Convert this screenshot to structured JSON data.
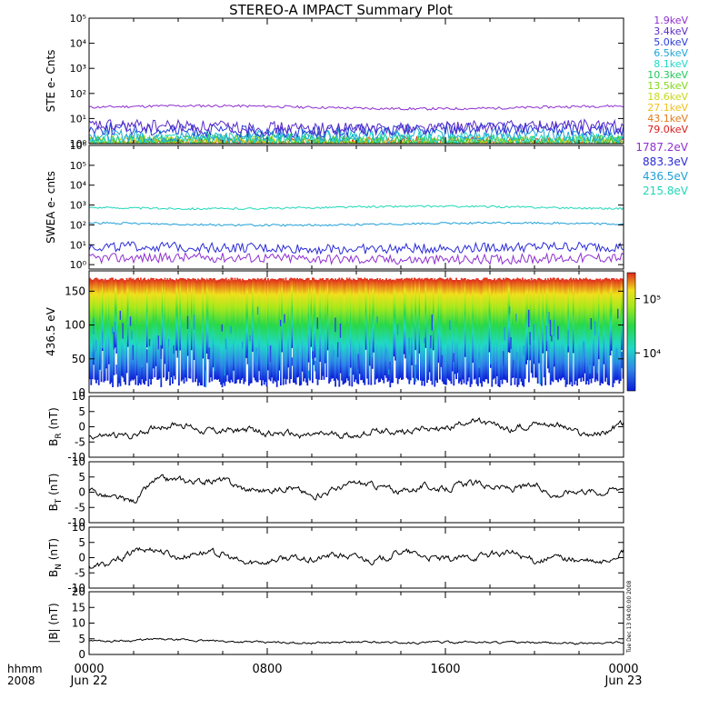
{
  "title": "STEREO-A IMPACT Summary Plot",
  "footer": {
    "left_line1": "hhmm",
    "left_line2": "2008"
  },
  "side_stamp": "Tue Dec 13 04:00:00 2008",
  "x_axis": {
    "ticks": [
      {
        "hours": 0,
        "line1": "0000",
        "line2": "Jun 22"
      },
      {
        "hours": 8,
        "line1": "0800",
        "line2": ""
      },
      {
        "hours": 16,
        "line1": "1600",
        "line2": ""
      },
      {
        "hours": 24,
        "line1": "0000",
        "line2": "Jun 23"
      }
    ],
    "range_hours": [
      0,
      24
    ]
  },
  "colors": {
    "ste": [
      "#8f2fd0",
      "#5a2bc8",
      "#2a3cd8",
      "#1fa6d8",
      "#20d8c8",
      "#22c85a",
      "#80d81c",
      "#c8d81c",
      "#f0c01c",
      "#e07a1c",
      "#d81c1c"
    ],
    "swea": [
      "#8f2fd0",
      "#2a2ad8",
      "#1f9fd8",
      "#20d8b8"
    ]
  },
  "chart_data": [
    {
      "type": "line",
      "ylabel": "STE e- Cnts",
      "yscale": "log",
      "ylim": [
        1,
        100000
      ],
      "yticks": [
        "10⁰",
        "10¹",
        "10²",
        "10³",
        "10⁴",
        "10⁵"
      ],
      "series": [
        {
          "name": "1.9keV",
          "level": 28
        },
        {
          "name": "3.4keV",
          "level": 4.5
        },
        {
          "name": "5.0keV",
          "level": 3.5
        },
        {
          "name": "6.5keV",
          "level": 2.2
        },
        {
          "name": "8.1keV",
          "level": 1.6
        },
        {
          "name": "10.3keV",
          "level": 1.3
        },
        {
          "name": "13.5keV",
          "level": 1.1
        },
        {
          "name": "18.6keV",
          "level": 1.05
        },
        {
          "name": "27.1keV",
          "level": 1.0
        },
        {
          "name": "43.1keV",
          "level": 1.0
        },
        {
          "name": "79.0keV",
          "level": 1.0
        }
      ]
    },
    {
      "type": "line",
      "ylabel": "SWEA e- cnts",
      "yscale": "log",
      "ylim": [
        0.6,
        1000000
      ],
      "yticks": [
        "10⁰",
        "10¹",
        "10²",
        "10³",
        "10⁴",
        "10⁵",
        "10⁶"
      ],
      "series": [
        {
          "name": "1787.2eV",
          "level": 2
        },
        {
          "name": "883.3eV",
          "level": 7
        },
        {
          "name": "436.5eV",
          "level": 110
        },
        {
          "name": "215.8eV",
          "level": 750
        }
      ]
    },
    {
      "type": "heatmap",
      "ylabel": "436.5 eV",
      "ylim": [
        0,
        180
      ],
      "yticks": [
        0,
        50,
        100,
        150
      ],
      "colorbar": {
        "scale": "log",
        "range": [
          2000,
          300000
        ],
        "ticks": [
          "10⁴",
          "10⁵"
        ],
        "tick_values": [
          10000,
          100000
        ]
      }
    },
    {
      "type": "line",
      "ylabel": "B",
      "ylabel_sub": "R",
      "ylabel_unit": " (nT)",
      "ylim": [
        -10,
        10
      ],
      "yticks": [
        -10,
        -5,
        0,
        5,
        10
      ],
      "x_hours": [
        0,
        1,
        2,
        3,
        4,
        5,
        6,
        7,
        8,
        9,
        10,
        11,
        12,
        13,
        14,
        15,
        16,
        17,
        18,
        19,
        20,
        21,
        22,
        23,
        24
      ],
      "values": [
        -3,
        -3,
        -3,
        0,
        1,
        -1,
        -1.5,
        -1,
        -2,
        -2.5,
        -3,
        -2.5,
        -3,
        -1,
        -2,
        0,
        -1,
        2,
        0.5,
        -1,
        1.5,
        1,
        -2.5,
        -2.5,
        1
      ]
    },
    {
      "type": "line",
      "ylabel": "B",
      "ylabel_sub": "T",
      "ylabel_unit": " (nT)",
      "ylim": [
        -10,
        10
      ],
      "yticks": [
        -10,
        -5,
        0,
        5,
        10
      ],
      "x_hours": [
        0,
        1,
        2,
        3,
        4,
        5,
        6,
        7,
        8,
        9,
        10,
        11,
        12,
        13,
        14,
        15,
        16,
        17,
        18,
        19,
        20,
        21,
        22,
        23,
        24
      ],
      "values": [
        1,
        -2,
        -3,
        4,
        4,
        3.5,
        4,
        1,
        0.5,
        2,
        -1.5,
        1,
        3,
        2,
        0,
        2,
        1,
        3,
        2,
        1,
        2,
        -1,
        1,
        0,
        2
      ]
    },
    {
      "type": "line",
      "ylabel": "B",
      "ylabel_sub": "N",
      "ylabel_unit": " (nT)",
      "ylim": [
        -10,
        10
      ],
      "yticks": [
        -10,
        -5,
        0,
        5,
        10
      ],
      "x_hours": [
        0,
        1,
        2,
        3,
        4,
        5,
        6,
        7,
        8,
        9,
        10,
        11,
        12,
        13,
        14,
        15,
        16,
        17,
        18,
        19,
        20,
        21,
        22,
        23,
        24
      ],
      "values": [
        -3,
        -2,
        2,
        3,
        0,
        2,
        1,
        -2,
        -1,
        0,
        -1,
        1,
        0,
        -1,
        2,
        0.5,
        -1,
        0,
        1,
        1.5,
        -1,
        0,
        -1,
        -2,
        2
      ]
    },
    {
      "type": "line",
      "ylabel": "|B| (nT)",
      "ylim": [
        0,
        20
      ],
      "yticks": [
        0,
        5,
        10,
        15,
        20
      ],
      "x_hours": [
        0,
        1,
        2,
        3,
        4,
        5,
        6,
        7,
        8,
        9,
        10,
        11,
        12,
        13,
        14,
        15,
        16,
        17,
        18,
        19,
        20,
        21,
        22,
        23,
        24
      ],
      "values": [
        4.5,
        4.3,
        4.5,
        4.8,
        4.6,
        4.4,
        4.2,
        4.0,
        3.8,
        3.8,
        3.7,
        3.8,
        3.9,
        3.9,
        3.7,
        3.8,
        3.9,
        4.0,
        3.9,
        3.8,
        3.7,
        3.6,
        3.5,
        3.6,
        4.0
      ]
    }
  ]
}
